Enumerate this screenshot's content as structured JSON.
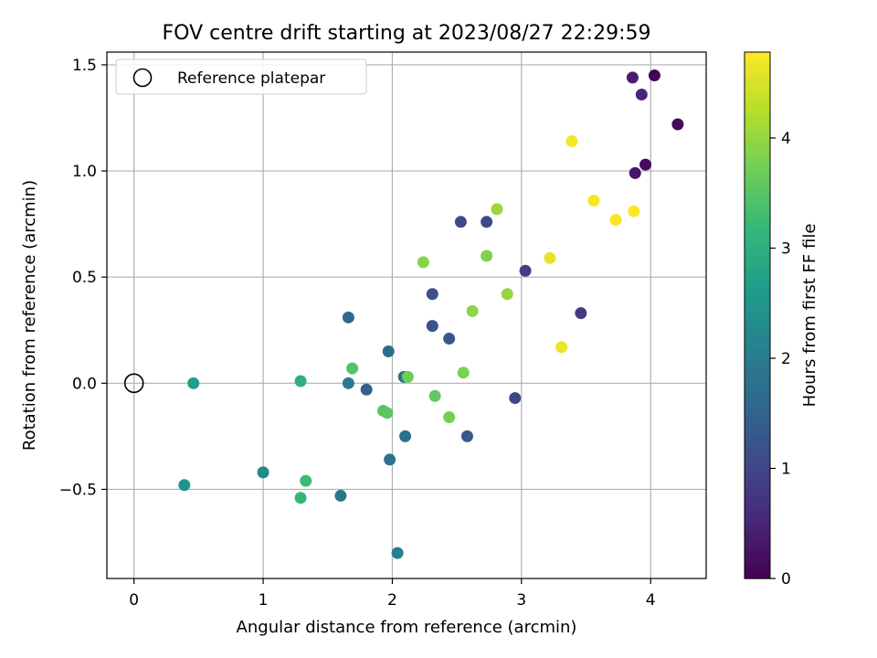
{
  "chart_data": {
    "type": "scatter",
    "title": "FOV centre drift starting at 2023/08/27 22:29:59",
    "xlabel": "Angular distance from reference (arcmin)",
    "ylabel": "Rotation from reference (arcmin)",
    "xlim": [
      -0.21,
      4.43
    ],
    "ylim": [
      -0.92,
      1.56
    ],
    "xticks": [
      0,
      1,
      2,
      3,
      4
    ],
    "xtick_labels": [
      "0",
      "1",
      "2",
      "3",
      "4"
    ],
    "yticks": [
      -0.5,
      0.0,
      0.5,
      1.0,
      1.5
    ],
    "ytick_labels": [
      "−0.5",
      "0.0",
      "0.5",
      "1.0",
      "1.5"
    ],
    "grid": true,
    "legend": {
      "position": "top-left",
      "entries": [
        {
          "label": "Reference platepar",
          "marker": "open-circle"
        }
      ]
    },
    "reference_point": {
      "x": 0,
      "y": 0
    },
    "colorbar": {
      "label": "Hours from first FF file",
      "colormap": "viridis",
      "range": [
        0,
        4.78
      ],
      "ticks": [
        0,
        1,
        2,
        3,
        4
      ],
      "tick_labels": [
        "0",
        "1",
        "2",
        "3",
        "4"
      ]
    },
    "points": [
      {
        "x": 4.03,
        "y": 1.45,
        "c": 0.05
      },
      {
        "x": 4.21,
        "y": 1.22,
        "c": 0.1
      },
      {
        "x": 3.96,
        "y": 1.03,
        "c": 0.15
      },
      {
        "x": 3.88,
        "y": 0.99,
        "c": 0.3
      },
      {
        "x": 3.86,
        "y": 1.44,
        "c": 0.4
      },
      {
        "x": 3.93,
        "y": 1.36,
        "c": 0.5
      },
      {
        "x": 3.46,
        "y": 0.33,
        "c": 0.85
      },
      {
        "x": 3.03,
        "y": 0.53,
        "c": 0.9
      },
      {
        "x": 2.95,
        "y": -0.07,
        "c": 1.0
      },
      {
        "x": 2.53,
        "y": 0.76,
        "c": 1.05
      },
      {
        "x": 2.73,
        "y": 0.76,
        "c": 1.1
      },
      {
        "x": 2.31,
        "y": 0.42,
        "c": 1.15
      },
      {
        "x": 2.31,
        "y": 0.27,
        "c": 1.2
      },
      {
        "x": 2.44,
        "y": 0.21,
        "c": 1.25
      },
      {
        "x": 2.58,
        "y": -0.25,
        "c": 1.35
      },
      {
        "x": 1.8,
        "y": -0.03,
        "c": 1.45
      },
      {
        "x": 1.66,
        "y": 0.31,
        "c": 1.6
      },
      {
        "x": 1.97,
        "y": 0.15,
        "c": 1.65
      },
      {
        "x": 2.09,
        "y": 0.03,
        "c": 1.7
      },
      {
        "x": 2.1,
        "y": -0.25,
        "c": 1.75
      },
      {
        "x": 1.98,
        "y": -0.36,
        "c": 1.8
      },
      {
        "x": 1.6,
        "y": -0.53,
        "c": 1.85
      },
      {
        "x": 1.66,
        "y": 0.0,
        "c": 1.95
      },
      {
        "x": 2.04,
        "y": -0.8,
        "c": 2.05
      },
      {
        "x": 1.0,
        "y": -0.42,
        "c": 2.25
      },
      {
        "x": 0.39,
        "y": -0.48,
        "c": 2.45
      },
      {
        "x": 0.46,
        "y": 0.0,
        "c": 2.65
      },
      {
        "x": 1.29,
        "y": 0.01,
        "c": 3.05
      },
      {
        "x": 1.29,
        "y": -0.54,
        "c": 3.15
      },
      {
        "x": 1.33,
        "y": -0.46,
        "c": 3.25
      },
      {
        "x": 1.69,
        "y": 0.07,
        "c": 3.45
      },
      {
        "x": 1.93,
        "y": -0.13,
        "c": 3.5
      },
      {
        "x": 1.96,
        "y": -0.14,
        "c": 3.55
      },
      {
        "x": 2.33,
        "y": -0.06,
        "c": 3.6
      },
      {
        "x": 2.12,
        "y": 0.03,
        "c": 3.7
      },
      {
        "x": 2.44,
        "y": -0.16,
        "c": 3.75
      },
      {
        "x": 2.55,
        "y": 0.05,
        "c": 3.8
      },
      {
        "x": 2.73,
        "y": 0.6,
        "c": 3.85
      },
      {
        "x": 2.24,
        "y": 0.57,
        "c": 3.9
      },
      {
        "x": 2.62,
        "y": 0.34,
        "c": 3.95
      },
      {
        "x": 2.89,
        "y": 0.42,
        "c": 4.0
      },
      {
        "x": 2.81,
        "y": 0.82,
        "c": 4.05
      },
      {
        "x": 3.22,
        "y": 0.59,
        "c": 4.6
      },
      {
        "x": 3.31,
        "y": 0.17,
        "c": 4.65
      },
      {
        "x": 3.39,
        "y": 1.14,
        "c": 4.7
      },
      {
        "x": 3.56,
        "y": 0.86,
        "c": 4.72
      },
      {
        "x": 3.73,
        "y": 0.77,
        "c": 4.75
      },
      {
        "x": 3.87,
        "y": 0.81,
        "c": 4.78
      }
    ]
  }
}
